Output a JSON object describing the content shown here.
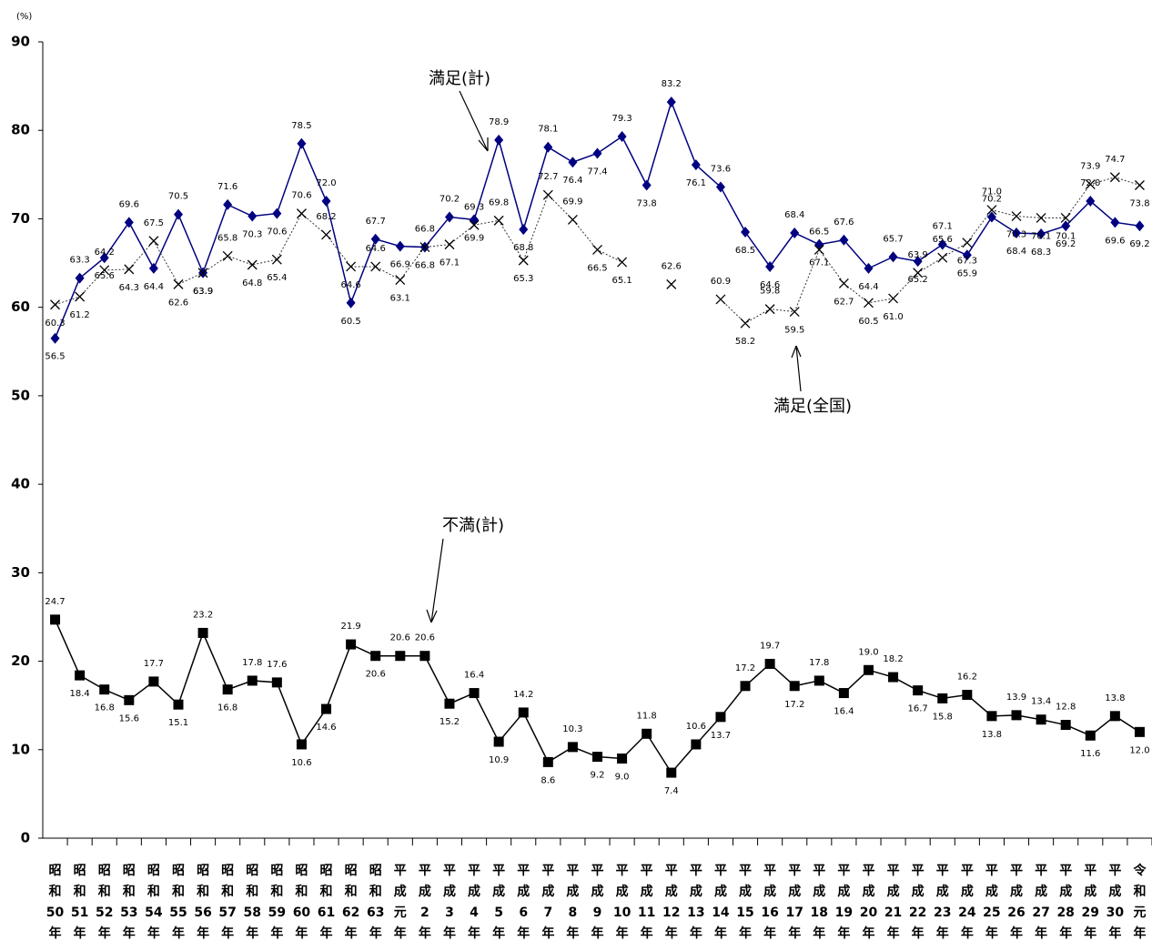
{
  "chart_data": {
    "type": "line",
    "y_unit": "(%)",
    "categories": [
      "昭和50年",
      "昭和51年",
      "昭和52年",
      "昭和53年",
      "昭和54年",
      "昭和55年",
      "昭和56年",
      "昭和57年",
      "昭和58年",
      "昭和59年",
      "昭和60年",
      "昭和61年",
      "昭和62年",
      "昭和63年",
      "平成元年",
      "平成2年",
      "平成3年",
      "平成4年",
      "平成5年",
      "平成6年",
      "平成7年",
      "平成8年",
      "平成9年",
      "平成10年",
      "平成11年",
      "平成12年",
      "平成13年",
      "平成14年",
      "平成15年",
      "平成16年",
      "平成17年",
      "平成18年",
      "平成19年",
      "平成20年",
      "平成21年",
      "平成22年",
      "平成23年",
      "平成24年",
      "平成25年",
      "平成26年",
      "平成27年",
      "平成28年",
      "平成29年",
      "平成30年",
      "令和元年"
    ],
    "series": [
      {
        "name": "満足(計)",
        "color": "#000080",
        "marker": "diamond",
        "line": "solid",
        "values": [
          56.5,
          63.3,
          65.6,
          69.6,
          64.4,
          70.5,
          63.9,
          71.6,
          70.3,
          70.6,
          78.5,
          72.0,
          60.5,
          67.7,
          66.9,
          66.8,
          70.2,
          69.9,
          78.9,
          68.8,
          78.1,
          76.4,
          77.4,
          79.3,
          73.8,
          83.2,
          76.1,
          73.6,
          68.5,
          64.6,
          68.4,
          67.1,
          67.6,
          64.4,
          65.7,
          65.2,
          67.1,
          65.9,
          70.2,
          68.4,
          68.3,
          69.2,
          72.0,
          69.6,
          69.2
        ],
        "value_labels": [
          "56.5",
          "63.3",
          "65.6",
          "69.6",
          "64.4",
          "70.5",
          "63.9",
          "71.6",
          "70.3",
          "70.6",
          "78.5",
          "72.0",
          "60.5",
          "67.7",
          "66.9",
          "66.8",
          "70.2",
          "69.9",
          "78.9",
          "68.8",
          "78.1",
          "76.4",
          "77.4",
          "79.3",
          "73.8",
          "83.2",
          "76.1",
          "73.6",
          "68.5",
          "64.6",
          "68.4",
          "67.1",
          "67.6",
          "64.4",
          "65.7",
          "65.2",
          "67.1",
          "65.9",
          "70.2",
          "68.4",
          "68.3",
          "69.2",
          "72.0",
          "69.6",
          "69.2"
        ]
      },
      {
        "name": "満足(全国)",
        "color": "#000000",
        "marker": "x",
        "line": "dotted",
        "values": [
          60.3,
          61.2,
          64.2,
          64.3,
          67.5,
          62.6,
          63.9,
          65.8,
          64.8,
          65.4,
          70.6,
          68.2,
          64.6,
          64.6,
          63.1,
          66.8,
          67.1,
          69.3,
          69.8,
          65.3,
          72.7,
          69.9,
          66.5,
          65.1,
          null,
          62.6,
          null,
          60.9,
          58.2,
          59.8,
          59.5,
          66.5,
          62.7,
          60.5,
          61.0,
          63.9,
          65.6,
          67.3,
          71.0,
          70.3,
          70.1,
          70.1,
          73.9,
          74.7,
          73.8
        ],
        "value_labels": [
          "60.3",
          "61.2",
          "64.2",
          "64.3",
          "67.5",
          "62.6",
          "63.9",
          "65.8",
          "64.8",
          "65.4",
          "70.6",
          "68.2",
          "64.6",
          "64.6",
          "63.1",
          "66.8",
          "67.1",
          "69.3",
          "69.8",
          "65.3",
          "72.7",
          "69.9",
          "66.5",
          "65.1",
          null,
          "62.6",
          null,
          "60.9",
          "58.2",
          "59.8",
          "59.5",
          "66.5",
          "62.7",
          "60.5",
          "61.0",
          "63.9",
          "65.6",
          "67.3",
          "71.0",
          "70.3",
          "70.1",
          "70.1",
          "73.9",
          "74.7",
          "73.8"
        ]
      },
      {
        "name": "不満(計)",
        "color": "#000000",
        "marker": "square",
        "line": "solid",
        "values": [
          24.7,
          18.4,
          16.8,
          15.6,
          17.7,
          15.1,
          23.2,
          16.8,
          17.8,
          17.6,
          10.6,
          14.6,
          21.9,
          20.6,
          20.6,
          20.6,
          15.2,
          16.4,
          10.9,
          14.2,
          8.6,
          10.3,
          9.2,
          9.0,
          11.8,
          7.4,
          10.6,
          13.7,
          17.2,
          19.7,
          17.2,
          17.8,
          16.4,
          19.0,
          18.2,
          16.7,
          15.8,
          16.2,
          13.8,
          13.9,
          13.4,
          12.8,
          11.6,
          13.8,
          12.0
        ],
        "value_labels": [
          "24.7",
          "18.4",
          "16.8",
          "15.6",
          "17.7",
          "15.1",
          "23.2",
          "16.8",
          "17.8",
          "17.6",
          "10.6",
          "14.6",
          "21.9",
          "20.6",
          "20.6",
          "20.6",
          "15.2",
          "16.4",
          "10.9",
          "14.2",
          "8.6",
          "10.3",
          "9.2",
          "9.0",
          "11.8",
          "7.4",
          "10.6",
          "13.7",
          "17.2",
          "19.7",
          "17.2",
          "17.8",
          "16.4",
          "19.0",
          "18.2",
          "16.7",
          "15.8",
          "16.2",
          "13.8",
          "13.9",
          "13.4",
          "12.8",
          "11.6",
          "13.8",
          "12.0"
        ]
      }
    ],
    "ylim": [
      0,
      90
    ],
    "yticks": [
      0,
      10,
      20,
      30,
      40,
      50,
      60,
      70,
      80,
      90
    ],
    "grid": false
  }
}
